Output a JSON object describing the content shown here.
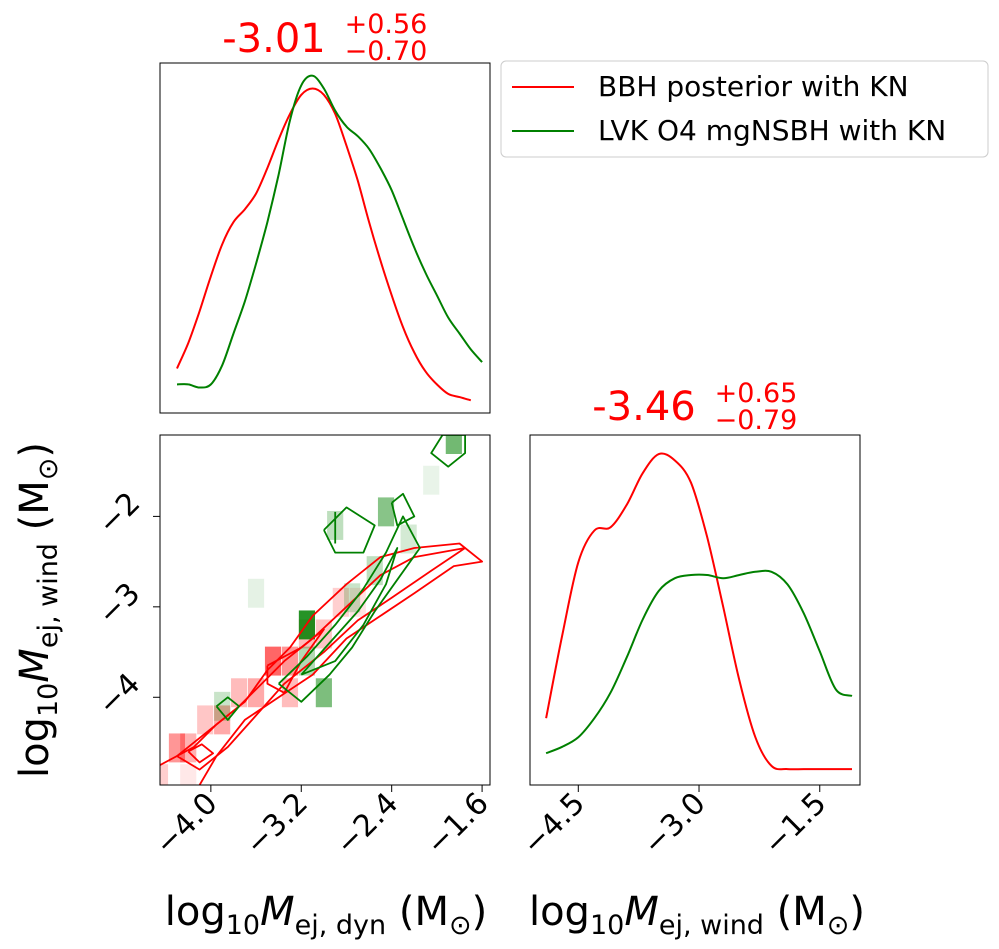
{
  "legend": {
    "placement": "top-right",
    "entries": [
      {
        "label": "BBH posterior with KN",
        "color": "#ff0000"
      },
      {
        "label": "LVK O4 mgNSBH with KN",
        "color": "#008000"
      }
    ]
  },
  "colors": {
    "red": "#ff0000",
    "green": "#008000"
  },
  "chart_data": [
    {
      "type": "line",
      "panel": "marginal-dyn",
      "title": {
        "value": "-3.01",
        "plus": "+0.56",
        "minus": "−0.70"
      },
      "xlim": [
        -4.45,
        -1.53
      ],
      "ylim": [
        0,
        1.1
      ],
      "series": [
        {
          "name": "BBH posterior with KN",
          "color": "#ff0000",
          "x": [
            -4.3,
            -4.2,
            -4.1,
            -4.0,
            -3.9,
            -3.8,
            -3.7,
            -3.6,
            -3.5,
            -3.4,
            -3.3,
            -3.2,
            -3.1,
            -3.0,
            -2.9,
            -2.8,
            -2.7,
            -2.6,
            -2.5,
            -2.4,
            -2.3,
            -2.2,
            -2.1,
            -2.0,
            -1.9,
            -1.8,
            -1.7
          ],
          "y": [
            0.14,
            0.22,
            0.32,
            0.43,
            0.53,
            0.6,
            0.64,
            0.69,
            0.77,
            0.86,
            0.94,
            1.0,
            1.02,
            1.0,
            0.94,
            0.84,
            0.73,
            0.6,
            0.48,
            0.37,
            0.27,
            0.19,
            0.13,
            0.09,
            0.06,
            0.05,
            0.04
          ]
        },
        {
          "name": "LVK O4 mgNSBH with KN",
          "color": "#008000",
          "x": [
            -4.3,
            -4.2,
            -4.1,
            -4.0,
            -3.9,
            -3.8,
            -3.7,
            -3.6,
            -3.5,
            -3.4,
            -3.3,
            -3.2,
            -3.1,
            -3.0,
            -2.9,
            -2.8,
            -2.7,
            -2.6,
            -2.5,
            -2.4,
            -2.3,
            -2.2,
            -2.1,
            -2.0,
            -1.9,
            -1.8,
            -1.7,
            -1.6
          ],
          "y": [
            0.09,
            0.09,
            0.08,
            0.09,
            0.15,
            0.25,
            0.35,
            0.47,
            0.6,
            0.75,
            0.92,
            1.03,
            1.06,
            1.02,
            0.95,
            0.9,
            0.87,
            0.83,
            0.77,
            0.7,
            0.61,
            0.52,
            0.44,
            0.37,
            0.3,
            0.25,
            0.2,
            0.16
          ]
        }
      ]
    },
    {
      "type": "line",
      "panel": "marginal-wind",
      "title": {
        "value": "-3.46",
        "plus": "+0.65",
        "minus": "−0.79"
      },
      "xlim": [
        -5.1,
        -1.0
      ],
      "ylim": [
        0,
        1.1
      ],
      "xlabel": "log10 M_ej,wind (M⊙)",
      "xticks": [
        -4.5,
        -3.0,
        -1.5
      ],
      "xtick_labels": [
        "−4.5",
        "−3.0",
        "−1.5"
      ],
      "series": [
        {
          "name": "BBH posterior with KN",
          "color": "#ff0000",
          "x": [
            -4.9,
            -4.7,
            -4.5,
            -4.3,
            -4.1,
            -3.9,
            -3.7,
            -3.5,
            -3.3,
            -3.1,
            -2.9,
            -2.7,
            -2.5,
            -2.3,
            -2.1,
            -1.9,
            -1.7,
            -1.5,
            -1.3,
            -1.1
          ],
          "y": [
            0.21,
            0.47,
            0.7,
            0.8,
            0.81,
            0.88,
            0.98,
            1.04,
            1.02,
            0.95,
            0.78,
            0.56,
            0.33,
            0.15,
            0.06,
            0.05,
            0.05,
            0.05,
            0.05,
            0.05
          ]
        },
        {
          "name": "LVK O4 mgNSBH with KN",
          "color": "#008000",
          "x": [
            -4.9,
            -4.7,
            -4.5,
            -4.3,
            -4.1,
            -3.9,
            -3.7,
            -3.5,
            -3.3,
            -3.1,
            -2.9,
            -2.7,
            -2.5,
            -2.3,
            -2.1,
            -1.9,
            -1.7,
            -1.5,
            -1.3,
            -1.1
          ],
          "y": [
            0.1,
            0.12,
            0.15,
            0.21,
            0.29,
            0.4,
            0.52,
            0.61,
            0.65,
            0.66,
            0.66,
            0.65,
            0.66,
            0.67,
            0.67,
            0.63,
            0.54,
            0.42,
            0.3,
            0.28
          ]
        }
      ]
    },
    {
      "type": "heatmap",
      "panel": "joint",
      "xlabel": "log10 M_ej,dyn (M⊙)",
      "ylabel": "log10 M_ej,wind (M⊙)",
      "xlim": [
        -4.45,
        -1.53
      ],
      "ylim": [
        -4.97,
        -1.1
      ],
      "xticks": [
        -4.0,
        -3.2,
        -2.4,
        -1.6
      ],
      "xtick_labels": [
        "−4.0",
        "−3.2",
        "−2.4",
        "−1.6"
      ],
      "yticks": [
        -4.0,
        -3.0,
        -2.0
      ],
      "ytick_labels": [
        "−4",
        "−3",
        "−2"
      ],
      "cell_size": {
        "x": 0.143,
        "y": 0.32
      },
      "red_cells": [
        {
          "x": -4.3,
          "y": -4.56,
          "w": 0.55
        },
        {
          "x": -4.2,
          "y": -4.56,
          "w": 0.4
        },
        {
          "x": -4.45,
          "y": -4.9,
          "w": 0.25
        },
        {
          "x": -4.05,
          "y": -4.25,
          "w": 0.3
        },
        {
          "x": -3.9,
          "y": -4.25,
          "w": 0.45
        },
        {
          "x": -3.75,
          "y": -3.95,
          "w": 0.35
        },
        {
          "x": -3.6,
          "y": -3.95,
          "w": 0.45
        },
        {
          "x": -3.45,
          "y": -3.6,
          "w": 0.8
        },
        {
          "x": -3.3,
          "y": -3.6,
          "w": 0.55
        },
        {
          "x": -3.3,
          "y": -3.95,
          "w": 0.35
        },
        {
          "x": -3.15,
          "y": -3.3,
          "w": 0.35
        },
        {
          "x": -3.0,
          "y": -3.3,
          "w": 0.3
        },
        {
          "x": -2.85,
          "y": -2.95,
          "w": 0.25
        },
        {
          "x": -2.7,
          "y": -2.95,
          "w": 0.15
        },
        {
          "x": -4.2,
          "y": -4.9,
          "w": 0.12
        }
      ],
      "green_cells": [
        {
          "x": -3.15,
          "y": -3.2,
          "w": 1.0
        },
        {
          "x": -3.0,
          "y": -3.95,
          "w": 0.6
        },
        {
          "x": -3.15,
          "y": -3.6,
          "w": 0.35
        },
        {
          "x": -1.85,
          "y": -1.15,
          "w": 0.65
        },
        {
          "x": -2.45,
          "y": -1.95,
          "w": 0.55
        },
        {
          "x": -2.9,
          "y": -2.1,
          "w": 0.3
        },
        {
          "x": -3.9,
          "y": -4.1,
          "w": 0.25
        },
        {
          "x": -2.75,
          "y": -2.9,
          "w": 0.25
        },
        {
          "x": -2.55,
          "y": -2.6,
          "w": 0.3
        },
        {
          "x": -3.6,
          "y": -2.85,
          "w": 0.12
        },
        {
          "x": -2.05,
          "y": -1.6,
          "w": 0.1
        },
        {
          "x": -2.25,
          "y": -2.25,
          "w": 0.2
        }
      ],
      "contours": [
        {
          "series": "BBH posterior with KN",
          "color": "#ff0000",
          "points": [
            [
              -4.45,
              -4.75
            ],
            [
              -4.15,
              -4.55
            ],
            [
              -3.95,
              -4.3
            ],
            [
              -3.7,
              -4.05
            ],
            [
              -3.5,
              -3.7
            ],
            [
              -3.3,
              -3.45
            ],
            [
              -3.1,
              -3.1
            ],
            [
              -2.8,
              -2.75
            ],
            [
              -2.5,
              -2.45
            ],
            [
              -2.2,
              -2.35
            ],
            [
              -1.8,
              -2.3
            ],
            [
              -1.6,
              -2.5
            ],
            [
              -1.85,
              -2.55
            ],
            [
              -2.2,
              -2.85
            ],
            [
              -2.5,
              -3.1
            ],
            [
              -2.8,
              -3.35
            ],
            [
              -3.1,
              -3.75
            ],
            [
              -3.4,
              -4.0
            ],
            [
              -3.7,
              -4.25
            ],
            [
              -3.95,
              -4.65
            ],
            [
              -4.1,
              -4.97
            ]
          ]
        },
        {
          "series": "BBH posterior with KN",
          "color": "#ff0000",
          "points": [
            [
              -4.3,
              -4.65
            ],
            [
              -4.0,
              -4.35
            ],
            [
              -3.75,
              -4.1
            ],
            [
              -3.55,
              -3.85
            ],
            [
              -3.35,
              -3.6
            ],
            [
              -3.1,
              -3.35
            ],
            [
              -2.8,
              -3.0
            ],
            [
              -2.5,
              -2.65
            ],
            [
              -2.2,
              -2.45
            ],
            [
              -1.75,
              -2.35
            ],
            [
              -2.05,
              -2.6
            ],
            [
              -2.4,
              -2.9
            ],
            [
              -2.7,
              -3.15
            ],
            [
              -3.0,
              -3.5
            ],
            [
              -3.35,
              -3.85
            ],
            [
              -3.6,
              -4.2
            ],
            [
              -3.85,
              -4.55
            ],
            [
              -4.1,
              -4.8
            ],
            [
              -4.3,
              -4.65
            ]
          ]
        },
        {
          "series": "BBH posterior with KN",
          "color": "#ff0000",
          "points": [
            [
              -4.2,
              -4.6
            ],
            [
              -4.08,
              -4.52
            ],
            [
              -3.98,
              -4.62
            ],
            [
              -4.1,
              -4.72
            ],
            [
              -4.2,
              -4.6
            ]
          ]
        },
        {
          "series": "BBH posterior with KN",
          "color": "#ff0000",
          "points": [
            [
              -3.5,
              -3.65
            ],
            [
              -3.2,
              -3.45
            ],
            [
              -3.0,
              -3.25
            ],
            [
              -3.2,
              -3.6
            ],
            [
              -3.35,
              -3.95
            ],
            [
              -3.5,
              -3.85
            ],
            [
              -3.5,
              -3.65
            ]
          ]
        },
        {
          "series": "LVK O4 mgNSBH with KN",
          "color": "#008000",
          "points": [
            [
              -3.4,
              -3.85
            ],
            [
              -3.15,
              -3.55
            ],
            [
              -2.9,
              -3.2
            ],
            [
              -2.65,
              -2.8
            ],
            [
              -2.45,
              -2.4
            ],
            [
              -2.3,
              -2.0
            ],
            [
              -2.15,
              -2.35
            ],
            [
              -2.35,
              -2.7
            ],
            [
              -2.55,
              -3.05
            ],
            [
              -2.75,
              -3.45
            ],
            [
              -2.95,
              -3.75
            ],
            [
              -3.2,
              -4.05
            ],
            [
              -3.4,
              -3.85
            ]
          ]
        },
        {
          "series": "LVK O4 mgNSBH with KN",
          "color": "#008000",
          "points": [
            [
              -3.2,
              -3.75
            ],
            [
              -2.95,
              -3.4
            ],
            [
              -2.7,
              -3.05
            ],
            [
              -2.5,
              -2.7
            ],
            [
              -2.35,
              -2.35
            ],
            [
              -2.45,
              -2.75
            ],
            [
              -2.65,
              -3.2
            ],
            [
              -2.9,
              -3.6
            ],
            [
              -3.2,
              -3.75
            ]
          ]
        },
        {
          "series": "LVK O4 mgNSBH with KN",
          "color": "#008000",
          "points": [
            [
              -3.0,
              -2.15
            ],
            [
              -2.8,
              -1.9
            ],
            [
              -2.55,
              -2.1
            ],
            [
              -2.65,
              -2.4
            ],
            [
              -2.9,
              -2.4
            ],
            [
              -3.0,
              -2.15
            ]
          ]
        },
        {
          "series": "LVK O4 mgNSBH with KN",
          "color": "#008000",
          "points": [
            [
              -2.4,
              -1.85
            ],
            [
              -2.3,
              -1.75
            ],
            [
              -2.2,
              -2.0
            ],
            [
              -2.35,
              -2.1
            ],
            [
              -2.4,
              -1.85
            ]
          ]
        },
        {
          "series": "LVK O4 mgNSBH with KN",
          "color": "#008000",
          "points": [
            [
              -1.95,
              -1.1
            ],
            [
              -1.75,
              -1.1
            ],
            [
              -1.75,
              -1.3
            ],
            [
              -1.9,
              -1.45
            ],
            [
              -2.05,
              -1.3
            ],
            [
              -1.95,
              -1.1
            ]
          ]
        },
        {
          "series": "LVK O4 mgNSBH with KN",
          "color": "#008000",
          "points": [
            [
              -3.95,
              -4.1
            ],
            [
              -3.85,
              -4.0
            ],
            [
              -3.75,
              -4.1
            ],
            [
              -3.85,
              -4.25
            ],
            [
              -3.95,
              -4.1
            ]
          ]
        },
        {
          "series": "LVK O4 mgNSBH with KN",
          "color": "#008000",
          "points": [
            [
              -2.9,
              -2.3
            ],
            [
              -2.9,
              -1.95
            ]
          ]
        }
      ]
    }
  ]
}
